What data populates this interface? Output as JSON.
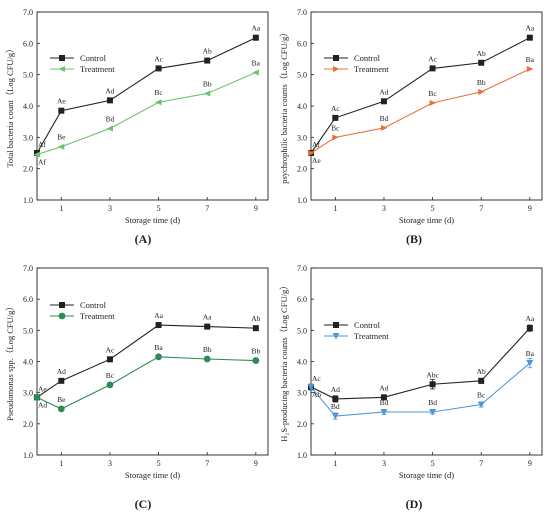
{
  "figure": {
    "panels": [
      "(A)",
      "(B)",
      "(C)",
      "(D)"
    ]
  },
  "chart_data": [
    {
      "type": "line",
      "panel_label": "(A)",
      "xlabel": "Storage time (d)",
      "ylabel": "Total bacteria count（Log CFU/g）",
      "xlim": [
        0,
        9.5
      ],
      "ylim": [
        1.0,
        7.0
      ],
      "xticks": [
        1,
        3,
        5,
        7,
        9
      ],
      "yticks": [
        "1.0",
        "2.0",
        "3.0",
        "4.0",
        "5.0",
        "6.0",
        "7.0"
      ],
      "legend": "top-left",
      "x": [
        0,
        1,
        3,
        5,
        7,
        9
      ],
      "series": [
        {
          "name": "Control",
          "marker": "square",
          "color": "#222222",
          "values": [
            2.5,
            3.85,
            4.18,
            5.2,
            5.45,
            6.18
          ],
          "labels": [
            "Af",
            "Ae",
            "Ad",
            "Ac",
            "Ab",
            "Aa"
          ]
        },
        {
          "name": "Treatment",
          "marker": "triangle-left",
          "color": "#6cc36c",
          "values": [
            2.45,
            2.7,
            3.28,
            4.12,
            4.4,
            5.07
          ],
          "labels": [
            "Af",
            "Be",
            "Bd",
            "Bc",
            "Bb",
            "Ba"
          ]
        }
      ]
    },
    {
      "type": "line",
      "panel_label": "(B)",
      "xlabel": "Storage time (d)",
      "ylabel": "psychrophilic bacteria counts（Log CFU/g）",
      "xlim": [
        0,
        9.5
      ],
      "ylim": [
        1.0,
        7.0
      ],
      "xticks": [
        1,
        3,
        5,
        7,
        9
      ],
      "yticks": [
        "1.0",
        "2.0",
        "3.0",
        "4.0",
        "5.0",
        "6.0",
        "7.0"
      ],
      "legend": "top-left",
      "x": [
        0,
        1,
        3,
        5,
        7,
        9
      ],
      "series": [
        {
          "name": "Control",
          "marker": "square",
          "color": "#222222",
          "values": [
            2.5,
            3.62,
            4.15,
            5.2,
            5.38,
            6.18
          ],
          "labels": [
            "Af",
            "Ac",
            "Ad",
            "Ac",
            "Ab",
            "Aa"
          ]
        },
        {
          "name": "Treatment",
          "marker": "triangle-right",
          "color": "#e8703a",
          "values": [
            2.5,
            3.0,
            3.3,
            4.1,
            4.45,
            5.18
          ],
          "labels": [
            "Ae",
            "Bc",
            "Bd",
            "Bc",
            "Bb",
            "Ba"
          ]
        }
      ]
    },
    {
      "type": "line",
      "panel_label": "(C)",
      "xlabel": "Storage time (d)",
      "ylabel": "Pseudomonas spp.（Log CFU/g）",
      "xlim": [
        0,
        9.5
      ],
      "ylim": [
        1.0,
        7.0
      ],
      "xticks": [
        1,
        3,
        5,
        7,
        9
      ],
      "yticks": [
        "1.0",
        "2.0",
        "3.0",
        "4.0",
        "5.0",
        "6.0",
        "7.0"
      ],
      "legend": "top-left",
      "x": [
        0,
        1,
        3,
        5,
        7,
        9
      ],
      "series": [
        {
          "name": "Control",
          "marker": "square",
          "color": "#222222",
          "values": [
            2.85,
            3.38,
            4.07,
            5.17,
            5.12,
            5.07
          ],
          "labels": [
            "Ae",
            "Ad",
            "Ac",
            "Aa",
            "Aa",
            "Ab"
          ]
        },
        {
          "name": "Treatment",
          "marker": "circle",
          "color": "#2e8b57",
          "values": [
            2.85,
            2.48,
            3.25,
            4.15,
            4.08,
            4.03
          ],
          "labels": [
            "Ad",
            "Be",
            "Bc",
            "Ba",
            "Bb",
            "Bb"
          ]
        }
      ]
    },
    {
      "type": "line",
      "panel_label": "(D)",
      "xlabel": "Storage time (d)",
      "ylabel": "H₂S-producing bacteria counts（Log CFU/g）",
      "xlim": [
        0,
        9.5
      ],
      "ylim": [
        1.0,
        7.0
      ],
      "xticks": [
        1,
        3,
        5,
        7,
        9
      ],
      "yticks": [
        "1.0",
        "2.0",
        "3.0",
        "4.0",
        "5.0",
        "6.0",
        "7.0"
      ],
      "legend": "top-left",
      "x": [
        0,
        1,
        3,
        5,
        7,
        9
      ],
      "series": [
        {
          "name": "Control",
          "marker": "square",
          "color": "#222222",
          "values": [
            3.18,
            2.8,
            2.85,
            3.27,
            3.38,
            5.07
          ],
          "errors": [
            0.1,
            0.1,
            0.08,
            0.15,
            0.08,
            0.1
          ],
          "labels": [
            "Ac",
            "Ad",
            "Ad",
            "Abc",
            "Ab",
            "Aa"
          ]
        },
        {
          "name": "Treatment",
          "marker": "triangle-down",
          "color": "#4f97d8",
          "values": [
            3.18,
            2.25,
            2.38,
            2.38,
            2.62,
            3.95
          ],
          "errors": [
            0.1,
            0.1,
            0.08,
            0.06,
            0.08,
            0.15
          ],
          "labels": [
            "Ab",
            "Bd",
            "Bd",
            "Bd",
            "Bc",
            "Ba"
          ]
        }
      ]
    }
  ]
}
